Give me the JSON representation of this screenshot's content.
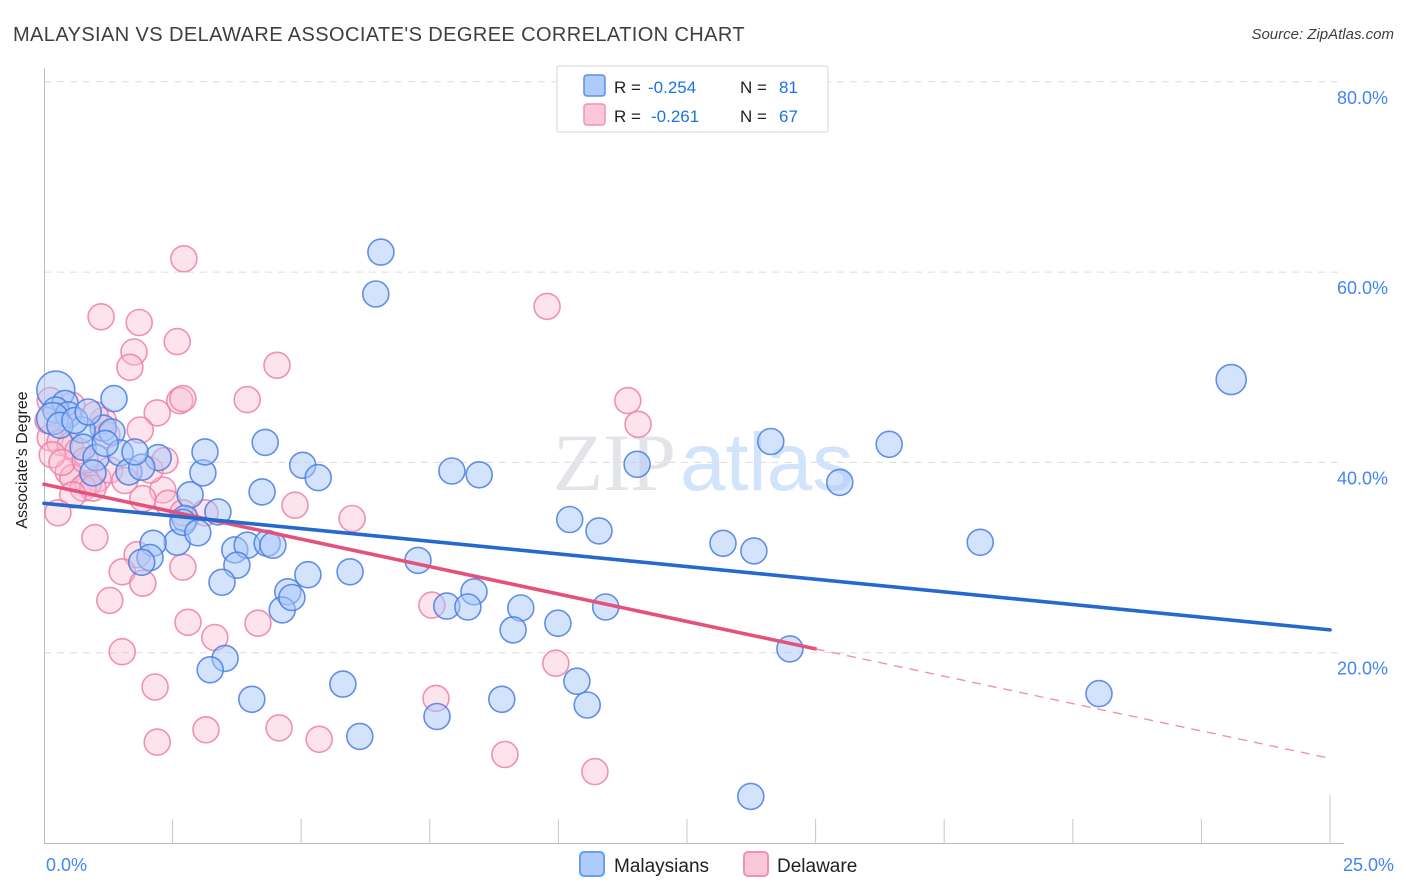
{
  "header": {
    "title": "MALAYSIAN VS DELAWARE ASSOCIATE'S DEGREE CORRELATION CHART",
    "source": "Source: ZipAtlas.com"
  },
  "watermark": {
    "part1": "ZIP",
    "part2": "atlas"
  },
  "y_axis_label": "Associate's Degree",
  "x_axis": {
    "min_label": "0.0%",
    "max_label": "25.0%"
  },
  "legend_box": {
    "rows": [
      {
        "series": "Malaysians",
        "r_label": "R =",
        "r_value": "-0.254",
        "n_label": "N =",
        "n_value": "81"
      },
      {
        "series": "Delaware",
        "r_label": "R =",
        "r_value": "-0.261",
        "n_label": "N =",
        "n_value": "67"
      }
    ]
  },
  "bottom_legend": [
    {
      "label": "Malaysians",
      "fill": "#aecbfa",
      "edge": "#699bf7"
    },
    {
      "label": "Delaware",
      "fill": "#fbc8d9",
      "edge": "#f48fb1"
    }
  ],
  "colors": {
    "tick_label_blue": "#4285f4",
    "value_blue": "#1a73e8",
    "blue_marker_fill": "#a7c7f9",
    "blue_marker_edge": "#4a7de2",
    "pink_marker_fill": "#f9bcd2",
    "pink_marker_edge": "#ee7fa6",
    "blue_trend": "#2669cc",
    "pink_trend": "#e4527c"
  },
  "chart_data": {
    "type": "scatter",
    "title": "MALAYSIAN VS DELAWARE ASSOCIATE'S DEGREE CORRELATION CHART",
    "xlabel": "",
    "ylabel": "Associate's Degree",
    "xlim": [
      0,
      25
    ],
    "ylim": [
      0,
      84
    ],
    "grid": "horizontal-dashed",
    "x_ticks": [
      2.5,
      5,
      7.5,
      10,
      12.5,
      15,
      17.5,
      20,
      22.5,
      25
    ],
    "y_ticks": [
      {
        "v": 20,
        "label": "20.0%"
      },
      {
        "v": 40,
        "label": "40.0%"
      },
      {
        "v": 60,
        "label": "60.0%"
      },
      {
        "v": 80,
        "label": "80.0%"
      }
    ],
    "series": [
      {
        "name": "Delaware",
        "key": "delaware",
        "R": -0.261,
        "N": 67,
        "fill": "#f9bcd2",
        "fill_opacity": 0.42,
        "edge": "#ee7fa6",
        "trend": {
          "x": [
            0,
            15.0
          ],
          "y": [
            37.7,
            20.4
          ],
          "dash_x": [
            15.0,
            25
          ],
          "dash_y": [
            20.4,
            8.9
          ]
        },
        "points": [
          [
            2.72,
            61.4
          ],
          [
            1.11,
            55.3
          ],
          [
            1.85,
            54.7
          ],
          [
            2.59,
            52.7
          ],
          [
            1.75,
            51.6
          ],
          [
            1.67,
            50.0
          ],
          [
            4.53,
            50.2
          ],
          [
            0.12,
            46.5
          ],
          [
            0.54,
            46.0
          ],
          [
            0.12,
            42.6
          ],
          [
            0.31,
            42.1
          ],
          [
            0.51,
            41.8
          ],
          [
            0.66,
            41.2
          ],
          [
            1.15,
            44.4
          ],
          [
            1.22,
            42.9
          ],
          [
            2.64,
            46.5
          ],
          [
            2.2,
            45.2
          ],
          [
            0.47,
            39.0
          ],
          [
            0.56,
            38.4
          ],
          [
            1.05,
            38.3
          ],
          [
            0.86,
            37.8
          ],
          [
            0.76,
            37.3
          ],
          [
            0.95,
            37.3
          ],
          [
            0.56,
            36.6
          ],
          [
            0.27,
            34.7
          ],
          [
            2.31,
            37.1
          ],
          [
            1.92,
            36.2
          ],
          [
            2.41,
            35.7
          ],
          [
            2.7,
            34.7
          ],
          [
            3.13,
            34.7
          ],
          [
            2.7,
            46.7
          ],
          [
            3.95,
            46.6
          ],
          [
            1.81,
            30.3
          ],
          [
            0.99,
            32.1
          ],
          [
            1.52,
            28.5
          ],
          [
            1.28,
            25.5
          ],
          [
            1.92,
            27.3
          ],
          [
            2.7,
            29.0
          ],
          [
            1.52,
            20.1
          ],
          [
            2.8,
            23.2
          ],
          [
            4.16,
            23.1
          ],
          [
            3.32,
            21.6
          ],
          [
            5.99,
            34.1
          ],
          [
            4.88,
            35.5
          ],
          [
            7.54,
            25.0
          ],
          [
            7.62,
            15.2
          ],
          [
            9.95,
            18.9
          ],
          [
            8.96,
            9.3
          ],
          [
            10.71,
            7.5
          ],
          [
            2.16,
            16.4
          ],
          [
            3.15,
            11.9
          ],
          [
            4.57,
            12.1
          ],
          [
            2.2,
            10.6
          ],
          [
            5.35,
            10.9
          ],
          [
            9.78,
            56.4
          ],
          [
            11.35,
            46.5
          ],
          [
            11.55,
            44.0
          ],
          [
            0.16,
            40.8
          ],
          [
            0.35,
            40.0
          ],
          [
            0.8,
            40.2
          ],
          [
            1.28,
            39.2
          ],
          [
            1.57,
            38.1
          ],
          [
            2.06,
            39.2
          ],
          [
            0.08,
            44.4
          ],
          [
            0.99,
            45.0
          ],
          [
            1.87,
            43.4
          ],
          [
            2.35,
            40.2
          ]
        ]
      },
      {
        "name": "Malaysians",
        "key": "malaysians",
        "R": -0.254,
        "N": 81,
        "fill": "#a7c7f9",
        "fill_opacity": 0.5,
        "edge": "#4a7de2",
        "trend": {
          "x": [
            0,
            25
          ],
          "y": [
            35.7,
            22.4
          ]
        },
        "points": [
          [
            0.23,
            47.6,
            19
          ],
          [
            0.41,
            46.2
          ],
          [
            0.23,
            45.5
          ],
          [
            0.47,
            45.0
          ],
          [
            0.17,
            44.6,
            16
          ],
          [
            1.36,
            46.7
          ],
          [
            1.15,
            43.6
          ],
          [
            1.32,
            43.2
          ],
          [
            0.74,
            43.4
          ],
          [
            0.76,
            41.6
          ],
          [
            1.01,
            40.5
          ],
          [
            1.48,
            41.0
          ],
          [
            2.22,
            40.5
          ],
          [
            1.65,
            39.0
          ],
          [
            1.9,
            39.5
          ],
          [
            0.95,
            38.9
          ],
          [
            2.84,
            36.6
          ],
          [
            2.74,
            34.1
          ],
          [
            3.09,
            38.9
          ],
          [
            4.3,
            42.1
          ],
          [
            5.03,
            39.7
          ],
          [
            5.33,
            38.4
          ],
          [
            4.24,
            36.9
          ],
          [
            2.59,
            31.6
          ],
          [
            2.12,
            31.5
          ],
          [
            2.06,
            30.0
          ],
          [
            1.9,
            29.5
          ],
          [
            2.7,
            33.7
          ],
          [
            2.99,
            32.6
          ],
          [
            3.71,
            30.8
          ],
          [
            3.95,
            31.3
          ],
          [
            4.34,
            31.5
          ],
          [
            4.45,
            31.3
          ],
          [
            3.75,
            29.2
          ],
          [
            3.46,
            27.4
          ],
          [
            5.13,
            28.2
          ],
          [
            5.95,
            28.5
          ],
          [
            4.74,
            26.4
          ],
          [
            4.63,
            24.5
          ],
          [
            4.82,
            25.8
          ],
          [
            7.27,
            29.7
          ],
          [
            3.52,
            19.4
          ],
          [
            3.23,
            18.2
          ],
          [
            4.04,
            15.1
          ],
          [
            5.81,
            16.7
          ],
          [
            6.14,
            11.2
          ],
          [
            7.64,
            13.3
          ],
          [
            8.36,
            26.4
          ],
          [
            7.83,
            24.9
          ],
          [
            8.24,
            24.8
          ],
          [
            9.27,
            24.7
          ],
          [
            9.12,
            22.4
          ],
          [
            9.99,
            23.1
          ],
          [
            10.92,
            24.8
          ],
          [
            10.36,
            17.0
          ],
          [
            8.9,
            15.1
          ],
          [
            10.56,
            14.5
          ],
          [
            13.74,
            4.9
          ],
          [
            14.5,
            20.4
          ],
          [
            10.22,
            34.0
          ],
          [
            10.79,
            32.8
          ],
          [
            13.2,
            31.5
          ],
          [
            13.8,
            30.7
          ],
          [
            6.55,
            62.1
          ],
          [
            6.45,
            57.7
          ],
          [
            11.53,
            39.8
          ],
          [
            7.93,
            39.1
          ],
          [
            8.46,
            38.7
          ],
          [
            23.08,
            48.7,
            15
          ],
          [
            14.13,
            42.2
          ],
          [
            16.43,
            41.9
          ],
          [
            15.47,
            37.9
          ],
          [
            18.2,
            31.6
          ],
          [
            20.51,
            15.7
          ],
          [
            0.31,
            43.9
          ],
          [
            0.6,
            44.4
          ],
          [
            0.86,
            45.3
          ],
          [
            1.19,
            42.0
          ],
          [
            1.77,
            41.1
          ],
          [
            3.38,
            34.8
          ],
          [
            3.13,
            41.1
          ]
        ]
      }
    ]
  }
}
